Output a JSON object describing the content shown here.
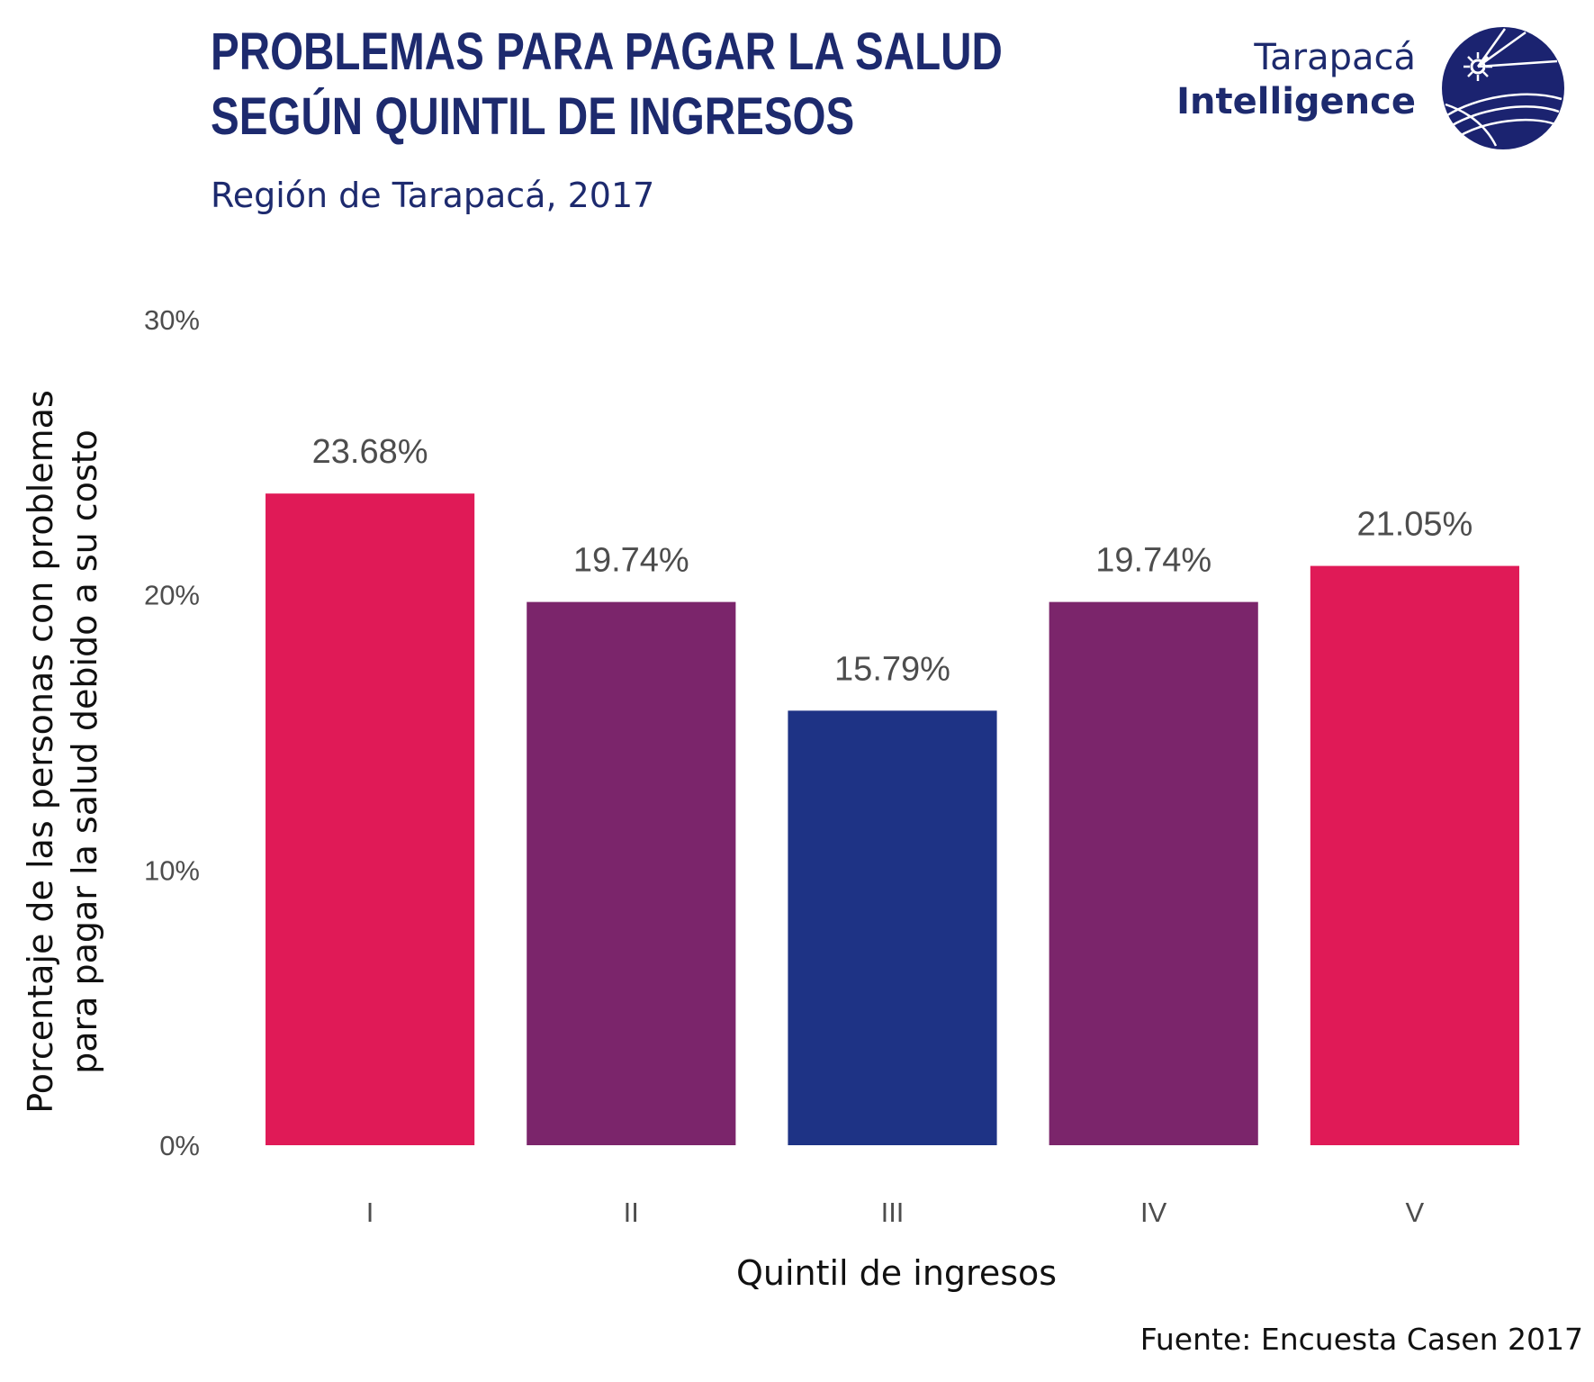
{
  "header": {
    "title_line1": "PROBLEMAS PARA PAGAR LA SALUD",
    "title_line2": "SEGÚN QUINTIL DE INGRESOS",
    "subtitle": "Región de Tarapacá, 2017"
  },
  "logo": {
    "line1": "Tarapacá",
    "line2": "Intelligence",
    "icon": "globe-compass-icon",
    "color": "#1b2370"
  },
  "footer": {
    "source": "Fuente: Encuesta Casen 2017"
  },
  "chart_data": {
    "type": "bar",
    "categories": [
      "I",
      "II",
      "III",
      "IV",
      "V"
    ],
    "values": [
      23.68,
      19.74,
      15.79,
      19.74,
      21.05
    ],
    "value_labels": [
      "23.68%",
      "19.74%",
      "15.79%",
      "19.74%",
      "21.05%"
    ],
    "bar_colors": [
      "#e01a57",
      "#7b256b",
      "#1e3385",
      "#7b256b",
      "#e01a57"
    ],
    "xlabel": "Quintil de ingresos",
    "ylabel_line1": "Porcentaje de las personas con problemas",
    "ylabel_line2": "para pagar la salud debido a su costo",
    "ylim": [
      0,
      30
    ],
    "yticks": [
      0,
      10,
      20,
      30
    ],
    "ytick_labels": [
      "0%",
      "10%",
      "20%",
      "30%"
    ],
    "grid": false,
    "legend": false
  }
}
